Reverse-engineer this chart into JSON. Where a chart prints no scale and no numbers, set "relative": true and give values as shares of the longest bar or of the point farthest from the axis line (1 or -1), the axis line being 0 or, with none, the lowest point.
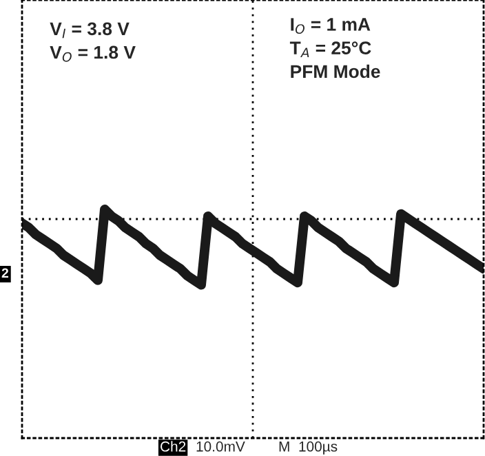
{
  "chart_data": {
    "type": "line",
    "relative": true,
    "grid": true,
    "categories": [
      null,
      null,
      null,
      null,
      null,
      null,
      null,
      null,
      null,
      null,
      null,
      null,
      null,
      null,
      null,
      null,
      null,
      null,
      null,
      null,
      null,
      null,
      null,
      null,
      null,
      null,
      null,
      null,
      null,
      null,
      null,
      null,
      null,
      null,
      null,
      null,
      null,
      null,
      null,
      null,
      null,
      null,
      null,
      null,
      null,
      null,
      null,
      null,
      null,
      null,
      null,
      null,
      null,
      null,
      null,
      null,
      null,
      null,
      null,
      null,
      null,
      null,
      null,
      null,
      null,
      null,
      null,
      null
    ],
    "series": [
      {
        "color": "#1a1a1a",
        "values": [
          0.94,
          0.92,
          0.89,
          0.87,
          0.85,
          0.83,
          0.8,
          0.78,
          0.76,
          0.74,
          0.72,
          0.69,
          1.0,
          0.97,
          0.95,
          0.92,
          0.9,
          0.88,
          0.85,
          0.83,
          0.8,
          0.78,
          0.76,
          0.74,
          0.71,
          0.69,
          0.67,
          0.97,
          0.94,
          0.92,
          0.9,
          0.88,
          0.85,
          0.83,
          0.81,
          0.79,
          0.77,
          0.74,
          0.72,
          0.7,
          0.68,
          0.97,
          0.95,
          0.92,
          0.9,
          0.88,
          0.86,
          0.83,
          0.81,
          0.79,
          0.77,
          0.74,
          0.72,
          0.7,
          0.68,
          0.98,
          0.96,
          0.94,
          0.92,
          0.9,
          0.88,
          0.86,
          0.84,
          0.82,
          0.8,
          0.78,
          0.76,
          0.74
        ]
      }
    ],
    "annotations": [
      "V$_{I}$ = 3.8 V\nV$_{O}$ = 1.8 V",
      "I$_{O}$ = 1 mA\nT$_{A}$ = 25°C\nPFM Mode",
      "2",
      "Ch2",
      "10.0mV",
      "M  100µs"
    ]
  }
}
